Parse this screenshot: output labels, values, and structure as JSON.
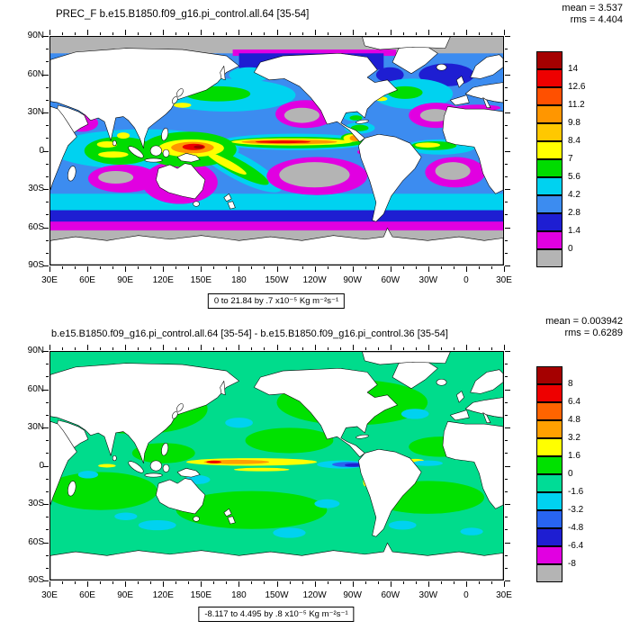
{
  "page": {
    "background": "#ffffff"
  },
  "axes": {
    "lat_labels": [
      "90N",
      "60N",
      "30N",
      "0",
      "30S",
      "60S",
      "90S"
    ],
    "lon_labels": [
      "30E",
      "60E",
      "90E",
      "120E",
      "150E",
      "180",
      "150W",
      "120W",
      "90W",
      "60W",
      "30W",
      "0",
      "30E"
    ]
  },
  "panels": [
    {
      "title": "PREC_F b.e15.B1850.f09_g16.pi_control.all.64 [35-54]",
      "stats": {
        "mean_label": "mean = 3.537",
        "rms_label": "rms = 4.404"
      },
      "caption": "0 to 21.84 by .7 x10⁻⁵ Kg m⁻²s⁻¹",
      "colorbar": {
        "labels": [
          "14",
          "12.6",
          "11.2",
          "9.8",
          "8.4",
          "7",
          "5.6",
          "4.2",
          "2.8",
          "1.4",
          "0"
        ],
        "colors": [
          "#a50000",
          "#ee0000",
          "#ff5000",
          "#ff9600",
          "#ffc800",
          "#ffff00",
          "#00dc00",
          "#00d2f0",
          "#3c8cf0",
          "#1e1ed2",
          "#e100e1",
          "#b4b4b4"
        ]
      }
    },
    {
      "title": "b.e15.B1850.f09_g16.pi_control.all.64 [35-54] - b.e15.B1850.f09_g16.pi_control.36 [35-54]",
      "stats": {
        "mean_label": "mean = 0.003942",
        "rms_label": "rms = 0.6289"
      },
      "caption": "-8.117 to 4.495 by .8 x10⁻⁵ Kg m⁻²s⁻¹",
      "colorbar": {
        "labels": [
          "8",
          "6.4",
          "4.8",
          "3.2",
          "1.6",
          "0",
          "-1.6",
          "-3.2",
          "-4.8",
          "-6.4",
          "-8"
        ],
        "colors": [
          "#a50000",
          "#ee0000",
          "#ff6400",
          "#ffa000",
          "#ffff00",
          "#00e100",
          "#00dc96",
          "#00d2f0",
          "#2864f0",
          "#1e1ed2",
          "#e100e1",
          "#b4b4b4"
        ]
      }
    }
  ],
  "chart_data": [
    {
      "type": "heatmap",
      "subtype": "filled-contour world map (cylindrical equidistant), ocean-only precipitation field",
      "title": "PREC_F b.e15.B1850.f09_g16.pi_control.all.64 [35-54]",
      "stats": {
        "mean": 3.537,
        "rms": 4.404
      },
      "units": "x10⁻⁵ Kg m⁻²s⁻¹",
      "contour_note": "0 to 21.84 by .7",
      "data_min": 0,
      "data_max": 21.84,
      "colorbar_levels": [
        14,
        12.6,
        11.2,
        9.8,
        8.4,
        7,
        5.6,
        4.2,
        2.8,
        1.4,
        0
      ],
      "x_ticks": [
        "30E",
        "60E",
        "90E",
        "120E",
        "150E",
        "180",
        "150W",
        "120W",
        "90W",
        "60W",
        "30W",
        "0",
        "30E"
      ],
      "y_ticks": [
        "90N",
        "60N",
        "30N",
        "0",
        "30S",
        "60S",
        "90S"
      ],
      "legend_position": "right"
    },
    {
      "type": "heatmap",
      "subtype": "filled-contour world map (cylindrical equidistant), difference field",
      "title": "b.e15.B1850.f09_g16.pi_control.all.64 [35-54] - b.e15.B1850.f09_g16.pi_control.36 [35-54]",
      "stats": {
        "mean": 0.003942,
        "rms": 0.6289
      },
      "units": "x10⁻⁵ Kg m⁻²s⁻¹",
      "contour_note": "-8.117 to 4.495 by .8",
      "data_min": -8.117,
      "data_max": 4.495,
      "colorbar_levels": [
        8,
        6.4,
        4.8,
        3.2,
        1.6,
        0,
        -1.6,
        -3.2,
        -4.8,
        -6.4,
        -8
      ],
      "x_ticks": [
        "30E",
        "60E",
        "90E",
        "120E",
        "150E",
        "180",
        "150W",
        "120W",
        "90W",
        "60W",
        "30W",
        "0",
        "30E"
      ],
      "y_ticks": [
        "90N",
        "60N",
        "30N",
        "0",
        "30S",
        "60S",
        "90S"
      ],
      "legend_position": "right"
    }
  ]
}
